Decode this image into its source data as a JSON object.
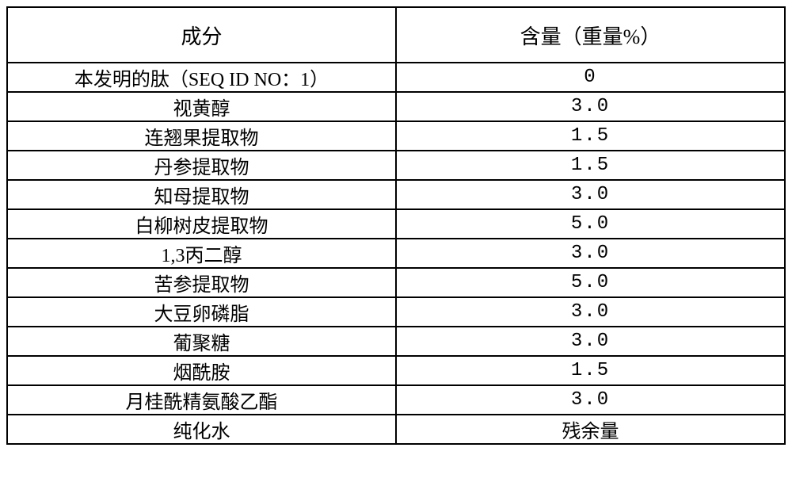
{
  "table": {
    "columns": [
      {
        "label": "成分",
        "key": "ingredient"
      },
      {
        "label": "含量（重量%）",
        "key": "amount"
      }
    ],
    "rows": [
      {
        "ingredient": "本发明的肽（SEQ ID NO：1）",
        "amount": "0"
      },
      {
        "ingredient": "视黄醇",
        "amount": "3.0"
      },
      {
        "ingredient": "连翘果提取物",
        "amount": "1.5"
      },
      {
        "ingredient": "丹参提取物",
        "amount": "1.5"
      },
      {
        "ingredient": "知母提取物",
        "amount": "3.0"
      },
      {
        "ingredient": "白柳树皮提取物",
        "amount": "5.0"
      },
      {
        "ingredient": "1,3丙二醇",
        "amount": "3.0"
      },
      {
        "ingredient": "苦参提取物",
        "amount": "5.0"
      },
      {
        "ingredient": "大豆卵磷脂",
        "amount": "3.0"
      },
      {
        "ingredient": "葡聚糖",
        "amount": "3.0"
      },
      {
        "ingredient": "烟酰胺",
        "amount": "1.5"
      },
      {
        "ingredient": "月桂酰精氨酸乙酯",
        "amount": "3.0"
      },
      {
        "ingredient": "纯化水",
        "amount": "残余量"
      }
    ],
    "styling": {
      "border_color": "#000000",
      "border_width": 2,
      "background_color": "#ffffff",
      "text_color": "#000000",
      "header_fontsize": 26,
      "cell_fontsize": 24,
      "header_row_height": 70,
      "data_row_height": 36,
      "font_family_cjk": "KaiTi",
      "font_family_latin": "Courier New",
      "column_widths_pct": [
        50,
        50
      ],
      "text_align": "center"
    }
  }
}
